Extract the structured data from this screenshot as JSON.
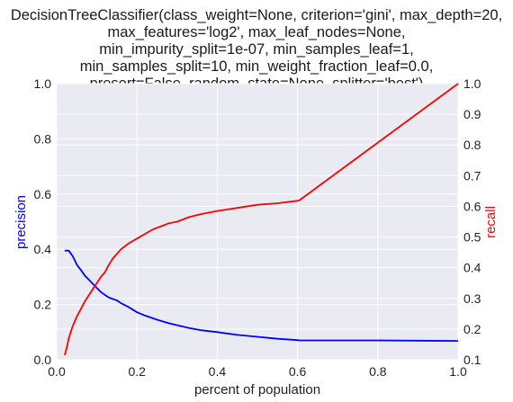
{
  "chart_data": {
    "type": "line",
    "title_lines": [
      "DecisionTreeClassifier(class_weight=None, criterion='gini', max_depth=20,",
      "max_features='log2', max_leaf_nodes=None,",
      "min_impurity_split=1e-07, min_samples_leaf=1,",
      "min_samples_split=10, min_weight_fraction_leaf=0.0,",
      "presort=False, random_state=None, splitter='best')"
    ],
    "xlabel": "percent of population",
    "ylabel_left": "precision",
    "ylabel_right": "recall",
    "xlim": [
      0,
      1
    ],
    "ylim_left": [
      0,
      1
    ],
    "ylim_right": [
      0.1,
      1
    ],
    "x_ticks": [
      "0.0",
      "0.2",
      "0.4",
      "0.6",
      "0.8",
      "1.0"
    ],
    "y_ticks_left": [
      "0.0",
      "0.2",
      "0.4",
      "0.6",
      "0.8",
      "1.0"
    ],
    "y_ticks_right": [
      "0.1",
      "0.2",
      "0.3",
      "0.4",
      "0.5",
      "0.6",
      "0.7",
      "0.8",
      "0.9",
      "1.0"
    ],
    "grid": true,
    "colors": {
      "precision": "#0000ff",
      "recall": "#ff0000",
      "plot_background": "#eaeaf2",
      "grid": "#ffffff"
    },
    "series": [
      {
        "name": "precision",
        "axis": "left",
        "x": [
          0.02,
          0.03,
          0.035,
          0.04,
          0.045,
          0.05,
          0.055,
          0.06,
          0.07,
          0.08,
          0.09,
          0.1,
          0.11,
          0.12,
          0.13,
          0.14,
          0.15,
          0.16,
          0.18,
          0.2,
          0.22,
          0.25,
          0.28,
          0.3,
          0.33,
          0.36,
          0.4,
          0.45,
          0.5,
          0.55,
          0.6,
          0.605,
          0.7,
          0.8,
          0.9,
          1.0
        ],
        "y": [
          0.395,
          0.395,
          0.385,
          0.375,
          0.36,
          0.345,
          0.335,
          0.325,
          0.305,
          0.29,
          0.275,
          0.26,
          0.245,
          0.235,
          0.225,
          0.22,
          0.215,
          0.205,
          0.19,
          0.172,
          0.16,
          0.145,
          0.132,
          0.125,
          0.115,
          0.107,
          0.1,
          0.09,
          0.083,
          0.076,
          0.071,
          0.07,
          0.07,
          0.07,
          0.069,
          0.068
        ]
      },
      {
        "name": "recall",
        "axis": "right",
        "x": [
          0.02,
          0.025,
          0.03,
          0.035,
          0.04,
          0.05,
          0.06,
          0.07,
          0.08,
          0.09,
          0.1,
          0.11,
          0.12,
          0.13,
          0.14,
          0.15,
          0.16,
          0.17,
          0.18,
          0.2,
          0.22,
          0.24,
          0.26,
          0.28,
          0.3,
          0.33,
          0.36,
          0.4,
          0.45,
          0.5,
          0.55,
          0.6,
          0.605,
          1.0
        ],
        "y": [
          0.115,
          0.14,
          0.17,
          0.19,
          0.21,
          0.24,
          0.265,
          0.29,
          0.31,
          0.33,
          0.35,
          0.37,
          0.385,
          0.41,
          0.43,
          0.445,
          0.46,
          0.47,
          0.48,
          0.495,
          0.51,
          0.525,
          0.535,
          0.545,
          0.55,
          0.565,
          0.575,
          0.585,
          0.595,
          0.605,
          0.61,
          0.618,
          0.62,
          1.0
        ]
      }
    ]
  }
}
